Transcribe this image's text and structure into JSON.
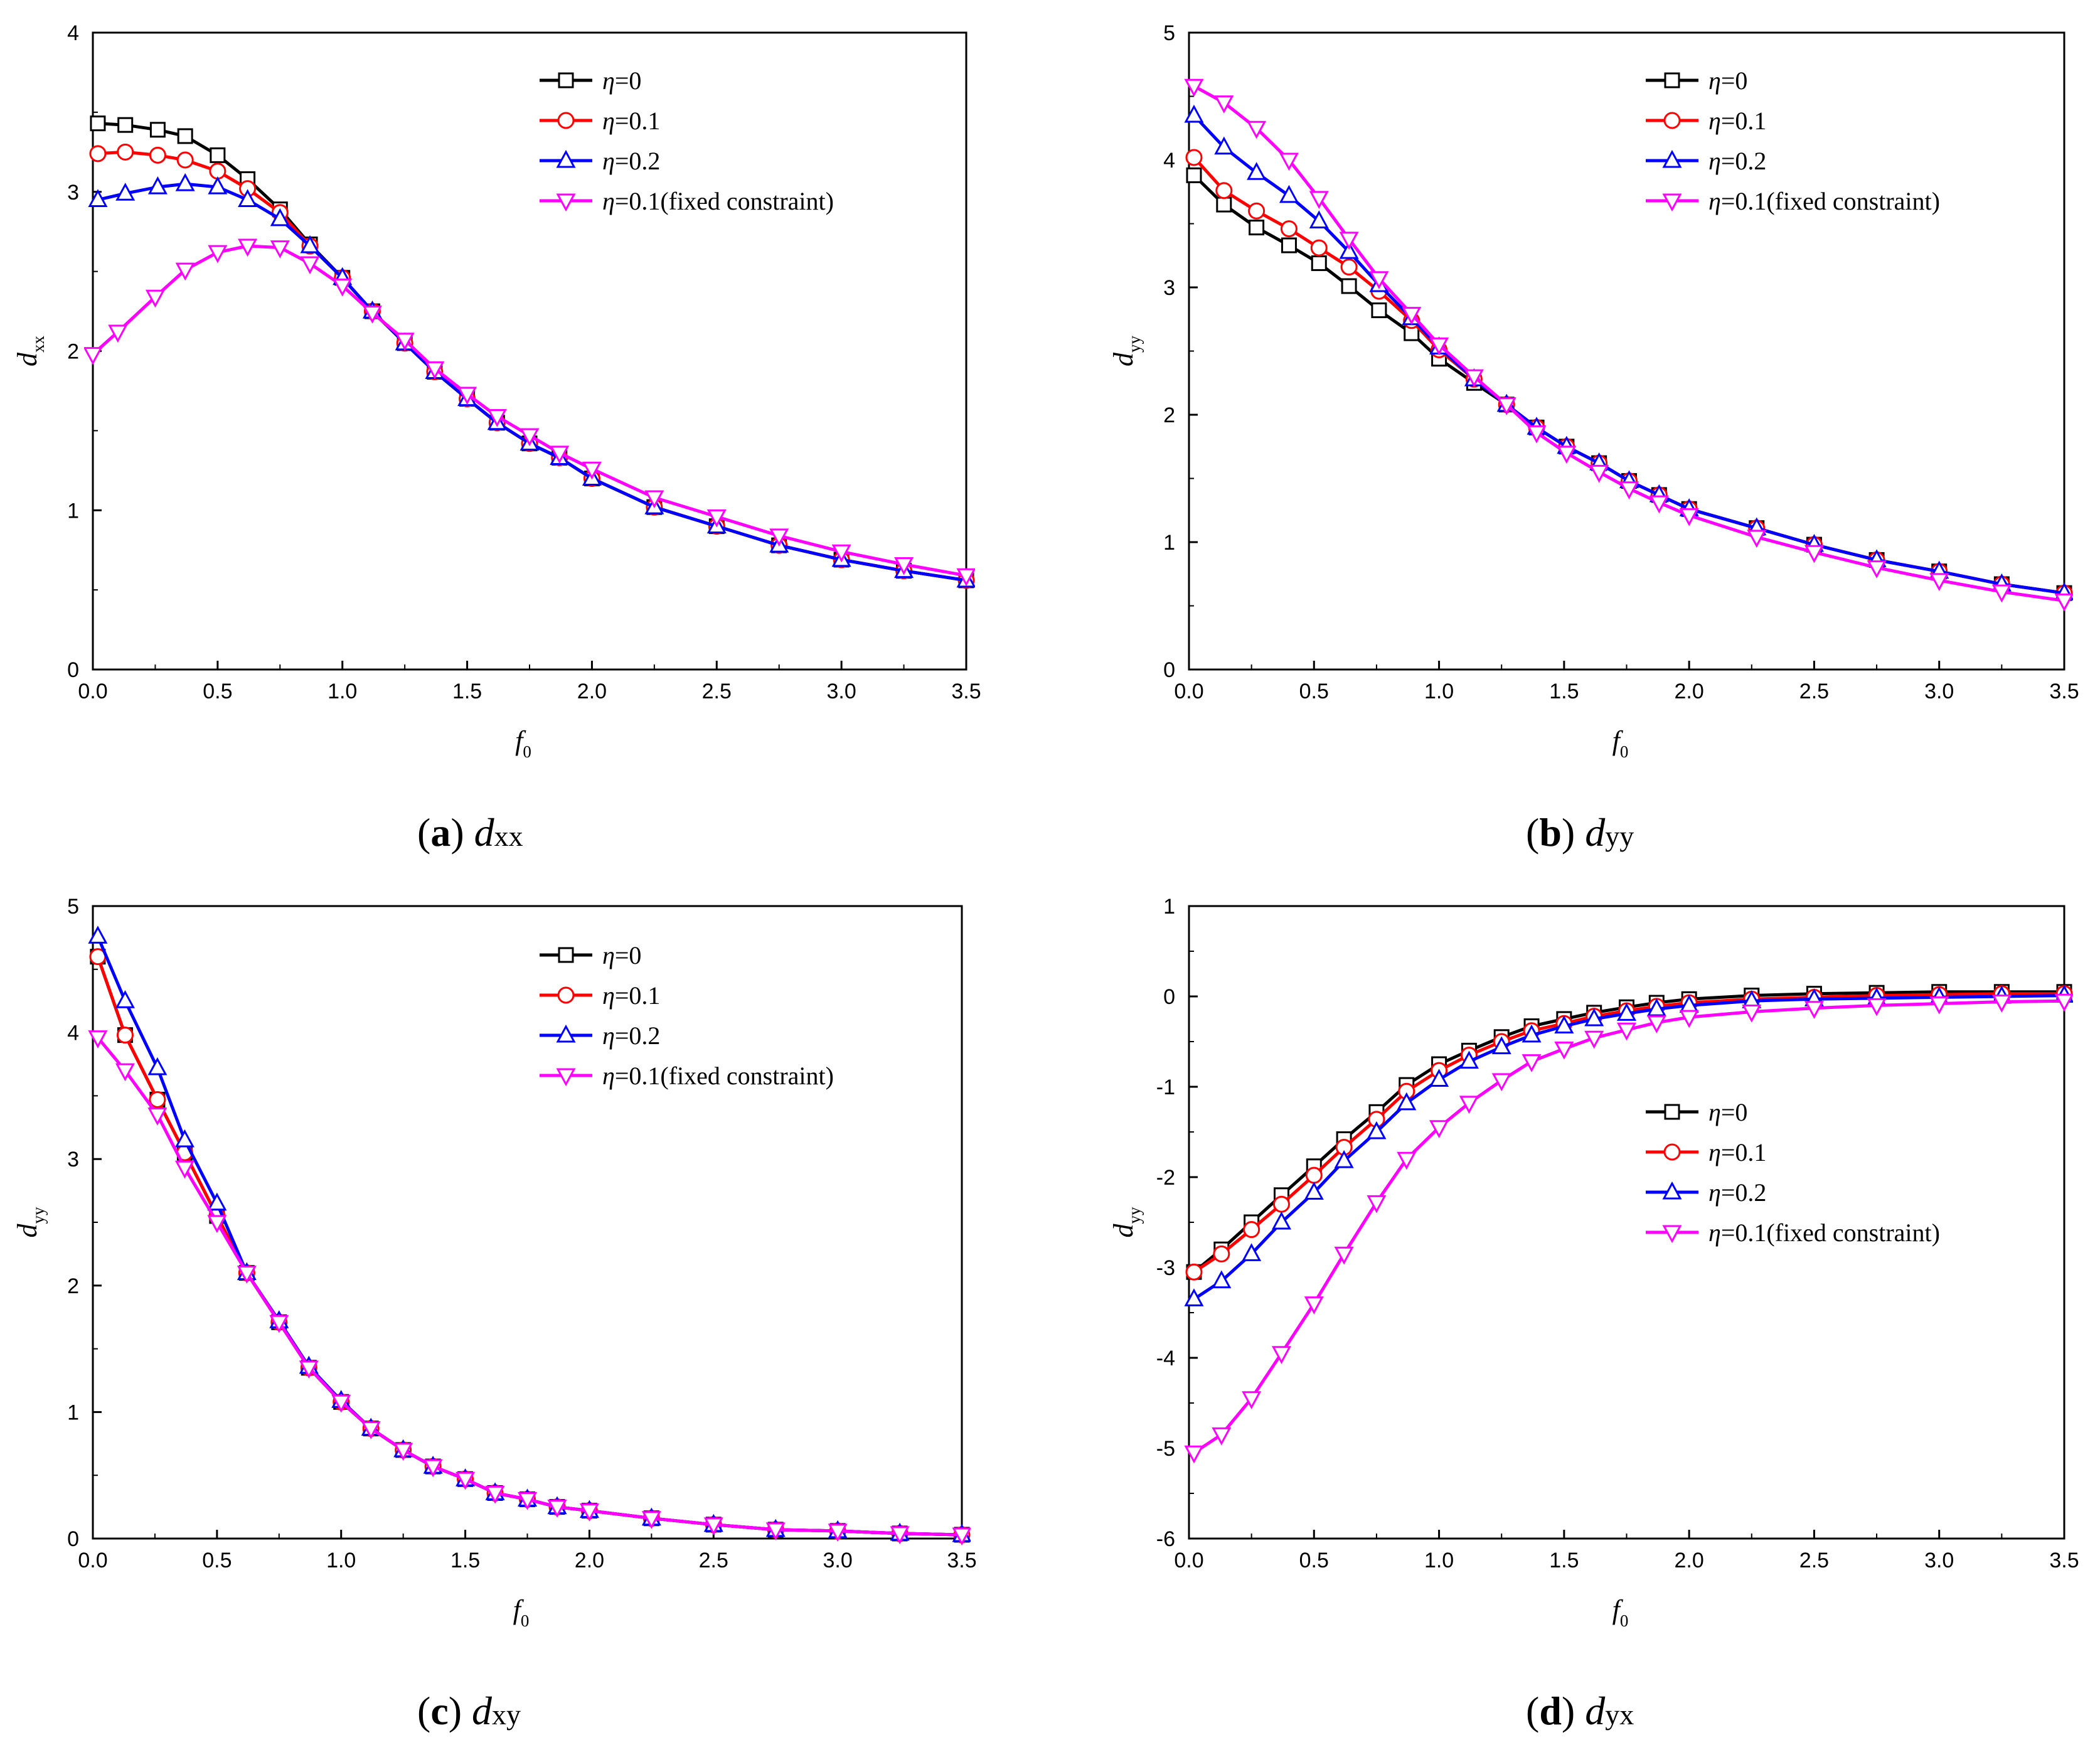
{
  "colors": {
    "eta0": "#000000",
    "eta01": "#ff0000",
    "eta02": "#0000ff",
    "fixed": "#ff00ff"
  },
  "chart_data": [
    {
      "type": "line",
      "panel_letter": "a",
      "caption_symbol": "d",
      "caption_sub": "xx",
      "ylabel_main": "d",
      "ylabel_sub": "xx",
      "xlabel_main": "f",
      "xlabel_sub": "0",
      "xlim": [
        0,
        3.5
      ],
      "ylim": [
        0,
        4
      ],
      "xticks": [
        "0.0",
        "0.5",
        "1.0",
        "1.5",
        "2.0",
        "2.5",
        "3.0",
        "3.5"
      ],
      "yticks": [
        "0",
        "1",
        "2",
        "3",
        "4"
      ],
      "legend_position": "top-right",
      "series": [
        {
          "name": "η=0",
          "eta": "0",
          "suffix": "",
          "color": "#000000",
          "marker": "square",
          "x": [
            0.02,
            0.13,
            0.26,
            0.37,
            0.5,
            0.62,
            0.75,
            0.87,
            1.0,
            1.12,
            1.25,
            1.37,
            1.5,
            1.62,
            1.75,
            1.87,
            2.0,
            2.25,
            2.5,
            2.75,
            3.0,
            3.25,
            3.5
          ],
          "y": [
            3.43,
            3.42,
            3.39,
            3.35,
            3.23,
            3.08,
            2.89,
            2.67,
            2.46,
            2.25,
            2.05,
            1.87,
            1.7,
            1.55,
            1.42,
            1.33,
            1.2,
            1.02,
            0.9,
            0.78,
            0.69,
            0.62,
            0.56
          ]
        },
        {
          "name": "η=0.1",
          "eta": "0.1",
          "suffix": "",
          "color": "#ff0000",
          "marker": "circle",
          "x": [
            0.02,
            0.13,
            0.26,
            0.37,
            0.5,
            0.62,
            0.75,
            0.87,
            1.0,
            1.12,
            1.25,
            1.37,
            1.5,
            1.62,
            1.75,
            1.87,
            2.0,
            2.25,
            2.5,
            2.75,
            3.0,
            3.25,
            3.5
          ],
          "y": [
            3.24,
            3.25,
            3.23,
            3.2,
            3.13,
            3.02,
            2.87,
            2.66,
            2.46,
            2.25,
            2.05,
            1.87,
            1.7,
            1.55,
            1.42,
            1.33,
            1.2,
            1.02,
            0.9,
            0.78,
            0.69,
            0.62,
            0.56
          ]
        },
        {
          "name": "η=0.2",
          "eta": "0.2",
          "suffix": "",
          "color": "#0000ff",
          "marker": "triangle-up",
          "x": [
            0.02,
            0.13,
            0.26,
            0.37,
            0.5,
            0.62,
            0.75,
            0.87,
            1.0,
            1.12,
            1.25,
            1.37,
            1.5,
            1.62,
            1.75,
            1.87,
            2.0,
            2.25,
            2.5,
            2.75,
            3.0,
            3.25,
            3.5
          ],
          "y": [
            2.95,
            2.99,
            3.03,
            3.05,
            3.03,
            2.95,
            2.83,
            2.66,
            2.46,
            2.25,
            2.05,
            1.87,
            1.7,
            1.55,
            1.42,
            1.33,
            1.2,
            1.02,
            0.9,
            0.78,
            0.69,
            0.62,
            0.56
          ]
        },
        {
          "name": "η=0.1(fixed constraint)",
          "eta": "0.1",
          "suffix": "(fixed constraint)",
          "color": "#ff00ff",
          "marker": "triangle-down",
          "x": [
            0.0,
            0.1,
            0.25,
            0.37,
            0.5,
            0.62,
            0.75,
            0.87,
            1.0,
            1.12,
            1.25,
            1.37,
            1.5,
            1.62,
            1.75,
            1.87,
            2.0,
            2.25,
            2.5,
            2.75,
            3.0,
            3.25,
            3.5
          ],
          "y": [
            1.98,
            2.12,
            2.34,
            2.51,
            2.62,
            2.66,
            2.65,
            2.55,
            2.41,
            2.24,
            2.07,
            1.89,
            1.73,
            1.59,
            1.47,
            1.36,
            1.26,
            1.08,
            0.96,
            0.84,
            0.74,
            0.66,
            0.59
          ]
        }
      ]
    },
    {
      "type": "line",
      "panel_letter": "b",
      "caption_symbol": "d",
      "caption_sub": "yy",
      "ylabel_main": "d",
      "ylabel_sub": "yy",
      "xlabel_main": "f",
      "xlabel_sub": "0",
      "xlim": [
        0,
        3.5
      ],
      "ylim": [
        0,
        5
      ],
      "xticks": [
        "0.0",
        "0.5",
        "1.0",
        "1.5",
        "2.0",
        "2.5",
        "3.0",
        "3.5"
      ],
      "yticks": [
        "0",
        "1",
        "2",
        "3",
        "4",
        "5"
      ],
      "legend_position": "top-right",
      "series": [
        {
          "name": "η=0",
          "eta": "0",
          "suffix": "",
          "color": "#000000",
          "marker": "square",
          "x": [
            0.02,
            0.14,
            0.27,
            0.4,
            0.52,
            0.64,
            0.76,
            0.89,
            1.0,
            1.14,
            1.27,
            1.39,
            1.51,
            1.64,
            1.76,
            1.88,
            2.0,
            2.27,
            2.5,
            2.75,
            3.0,
            3.25,
            3.5
          ],
          "y": [
            3.88,
            3.65,
            3.47,
            3.33,
            3.19,
            3.01,
            2.82,
            2.64,
            2.44,
            2.25,
            2.08,
            1.9,
            1.75,
            1.62,
            1.48,
            1.37,
            1.26,
            1.11,
            0.98,
            0.86,
            0.77,
            0.67,
            0.6
          ]
        },
        {
          "name": "η=0.1",
          "eta": "0.1",
          "suffix": "",
          "color": "#ff0000",
          "marker": "circle",
          "x": [
            0.02,
            0.14,
            0.27,
            0.4,
            0.52,
            0.64,
            0.76,
            0.89,
            1.0,
            1.14,
            1.27,
            1.39,
            1.51,
            1.64,
            1.76,
            1.88,
            2.0,
            2.27,
            2.5,
            2.75,
            3.0,
            3.25,
            3.5
          ],
          "y": [
            4.02,
            3.76,
            3.6,
            3.46,
            3.31,
            3.16,
            2.97,
            2.74,
            2.51,
            2.28,
            2.08,
            1.9,
            1.75,
            1.62,
            1.48,
            1.37,
            1.26,
            1.11,
            0.98,
            0.86,
            0.77,
            0.67,
            0.6
          ]
        },
        {
          "name": "η=0.2",
          "eta": "0.2",
          "suffix": "",
          "color": "#0000ff",
          "marker": "triangle-up",
          "x": [
            0.02,
            0.14,
            0.27,
            0.4,
            0.52,
            0.64,
            0.76,
            0.89,
            1.0,
            1.14,
            1.27,
            1.39,
            1.51,
            1.64,
            1.76,
            1.88,
            2.0,
            2.27,
            2.5,
            2.75,
            3.0,
            3.25,
            3.5
          ],
          "y": [
            4.35,
            4.1,
            3.9,
            3.72,
            3.52,
            3.28,
            3.02,
            2.76,
            2.53,
            2.28,
            2.08,
            1.9,
            1.75,
            1.62,
            1.48,
            1.37,
            1.26,
            1.11,
            0.98,
            0.86,
            0.77,
            0.67,
            0.6
          ]
        },
        {
          "name": "η=0.1(fixed constraint)",
          "eta": "0.1",
          "suffix": "(fixed constraint)",
          "color": "#ff00ff",
          "marker": "triangle-down",
          "x": [
            0.02,
            0.14,
            0.27,
            0.4,
            0.52,
            0.64,
            0.76,
            0.89,
            1.0,
            1.14,
            1.27,
            1.39,
            1.51,
            1.64,
            1.76,
            1.88,
            2.0,
            2.27,
            2.5,
            2.75,
            3.0,
            3.25,
            3.5
          ],
          "y": [
            4.58,
            4.45,
            4.25,
            4.0,
            3.7,
            3.38,
            3.07,
            2.79,
            2.55,
            2.3,
            2.08,
            1.86,
            1.7,
            1.55,
            1.42,
            1.31,
            1.21,
            1.04,
            0.92,
            0.8,
            0.7,
            0.61,
            0.54
          ]
        }
      ]
    },
    {
      "type": "line",
      "panel_letter": "c",
      "caption_symbol": "d",
      "caption_sub": "xy",
      "ylabel_main": "d",
      "ylabel_sub": "yy",
      "xlabel_main": "f",
      "xlabel_sub": "0",
      "xlim": [
        0,
        3.5
      ],
      "ylim": [
        0,
        5
      ],
      "xticks": [
        "0.0",
        "0.5",
        "1.0",
        "1.5",
        "2.0",
        "2.5",
        "3.0",
        "3.5"
      ],
      "yticks": [
        "0",
        "1",
        "2",
        "3",
        "4",
        "5"
      ],
      "legend_position": "top-right",
      "series": [
        {
          "name": "η=0",
          "eta": "0",
          "suffix": "",
          "color": "#000000",
          "marker": "square",
          "x": [
            0.02,
            0.13,
            0.26,
            0.37,
            0.5,
            0.62,
            0.75,
            0.87,
            1.0,
            1.12,
            1.25,
            1.37,
            1.5,
            1.62,
            1.75,
            1.87,
            2.0,
            2.25,
            2.5,
            2.75,
            3.0,
            3.25,
            3.5
          ],
          "y": [
            4.6,
            3.98,
            3.47,
            3.05,
            2.55,
            2.1,
            1.71,
            1.35,
            1.08,
            0.87,
            0.7,
            0.57,
            0.47,
            0.36,
            0.31,
            0.25,
            0.22,
            0.16,
            0.11,
            0.07,
            0.06,
            0.04,
            0.03
          ]
        },
        {
          "name": "η=0.1",
          "eta": "0.1",
          "suffix": "",
          "color": "#ff0000",
          "marker": "circle",
          "x": [
            0.02,
            0.13,
            0.26,
            0.37,
            0.5,
            0.62,
            0.75,
            0.87,
            1.0,
            1.12,
            1.25,
            1.37,
            1.5,
            1.62,
            1.75,
            1.87,
            2.0,
            2.25,
            2.5,
            2.75,
            3.0,
            3.25,
            3.5
          ],
          "y": [
            4.6,
            3.98,
            3.47,
            3.05,
            2.55,
            2.1,
            1.71,
            1.35,
            1.08,
            0.87,
            0.7,
            0.57,
            0.47,
            0.36,
            0.31,
            0.25,
            0.22,
            0.16,
            0.11,
            0.07,
            0.06,
            0.04,
            0.03
          ]
        },
        {
          "name": "η=0.2",
          "eta": "0.2",
          "suffix": "",
          "color": "#0000ff",
          "marker": "triangle-up",
          "x": [
            0.02,
            0.13,
            0.26,
            0.37,
            0.5,
            0.62,
            0.75,
            0.87,
            1.0,
            1.12,
            1.25,
            1.37,
            1.5,
            1.62,
            1.75,
            1.87,
            2.0,
            2.25,
            2.5,
            2.75,
            3.0,
            3.25,
            3.5
          ],
          "y": [
            4.76,
            4.25,
            3.72,
            3.15,
            2.65,
            2.1,
            1.72,
            1.36,
            1.09,
            0.87,
            0.7,
            0.57,
            0.47,
            0.36,
            0.31,
            0.25,
            0.22,
            0.16,
            0.11,
            0.07,
            0.06,
            0.04,
            0.03
          ]
        },
        {
          "name": "η=0.1(fixed constraint)",
          "eta": "0.1",
          "suffix": "(fixed constraint)",
          "color": "#ff00ff",
          "marker": "triangle-down",
          "x": [
            0.02,
            0.13,
            0.26,
            0.37,
            0.5,
            0.62,
            0.75,
            0.87,
            1.0,
            1.12,
            1.25,
            1.37,
            1.5,
            1.62,
            1.75,
            1.87,
            2.0,
            2.25,
            2.5,
            2.75,
            3.0,
            3.25,
            3.5
          ],
          "y": [
            3.96,
            3.7,
            3.35,
            2.93,
            2.5,
            2.1,
            1.71,
            1.35,
            1.08,
            0.87,
            0.7,
            0.57,
            0.47,
            0.36,
            0.31,
            0.25,
            0.22,
            0.16,
            0.11,
            0.07,
            0.06,
            0.04,
            0.03
          ]
        }
      ]
    },
    {
      "type": "line",
      "panel_letter": "d",
      "caption_symbol": "d",
      "caption_sub": "yx",
      "ylabel_main": "d",
      "ylabel_sub": "yy",
      "xlabel_main": "f",
      "xlabel_sub": "0",
      "xlim": [
        0,
        3.5
      ],
      "ylim": [
        -6,
        1
      ],
      "xticks": [
        "0.0",
        "0.5",
        "1.0",
        "1.5",
        "2.0",
        "2.5",
        "3.0",
        "3.5"
      ],
      "yticks": [
        "-6",
        "-5",
        "-4",
        "-3",
        "-2",
        "-1",
        "0",
        "1"
      ],
      "legend_position": "center-right",
      "series": [
        {
          "name": "η=0",
          "eta": "0",
          "suffix": "",
          "color": "#000000",
          "marker": "square",
          "x": [
            0.02,
            0.13,
            0.25,
            0.37,
            0.5,
            0.62,
            0.75,
            0.87,
            1.0,
            1.12,
            1.25,
            1.37,
            1.5,
            1.62,
            1.75,
            1.87,
            2.0,
            2.25,
            2.5,
            2.75,
            3.0,
            3.25,
            3.5
          ],
          "y": [
            -3.05,
            -2.8,
            -2.5,
            -2.2,
            -1.88,
            -1.58,
            -1.28,
            -0.98,
            -0.75,
            -0.6,
            -0.45,
            -0.33,
            -0.25,
            -0.18,
            -0.12,
            -0.07,
            -0.03,
            0.01,
            0.03,
            0.04,
            0.05,
            0.05,
            0.05
          ]
        },
        {
          "name": "η=0.1",
          "eta": "0.1",
          "suffix": "",
          "color": "#ff0000",
          "marker": "circle",
          "x": [
            0.02,
            0.13,
            0.25,
            0.37,
            0.5,
            0.62,
            0.75,
            0.87,
            1.0,
            1.12,
            1.25,
            1.37,
            1.5,
            1.62,
            1.75,
            1.87,
            2.0,
            2.25,
            2.5,
            2.75,
            3.0,
            3.25,
            3.5
          ],
          "y": [
            -3.05,
            -2.85,
            -2.58,
            -2.3,
            -1.98,
            -1.67,
            -1.36,
            -1.05,
            -0.82,
            -0.65,
            -0.5,
            -0.38,
            -0.3,
            -0.22,
            -0.16,
            -0.11,
            -0.07,
            -0.03,
            -0.01,
            0.01,
            0.02,
            0.03,
            0.03
          ]
        },
        {
          "name": "η=0.2",
          "eta": "0.2",
          "suffix": "",
          "color": "#0000ff",
          "marker": "triangle-up",
          "x": [
            0.02,
            0.13,
            0.25,
            0.37,
            0.5,
            0.62,
            0.75,
            0.87,
            1.0,
            1.12,
            1.25,
            1.37,
            1.5,
            1.62,
            1.75,
            1.87,
            2.0,
            2.25,
            2.5,
            2.75,
            3.0,
            3.25,
            3.5
          ],
          "y": [
            -3.35,
            -3.15,
            -2.85,
            -2.5,
            -2.17,
            -1.82,
            -1.5,
            -1.18,
            -0.92,
            -0.72,
            -0.56,
            -0.43,
            -0.33,
            -0.25,
            -0.19,
            -0.14,
            -0.1,
            -0.05,
            -0.03,
            -0.02,
            -0.01,
            0.0,
            0.01
          ]
        },
        {
          "name": "η=0.1(fixed constraint)",
          "eta": "0.1",
          "suffix": "(fixed constraint)",
          "color": "#ff00ff",
          "marker": "triangle-down",
          "x": [
            0.02,
            0.13,
            0.25,
            0.37,
            0.5,
            0.62,
            0.75,
            0.87,
            1.0,
            1.12,
            1.25,
            1.37,
            1.5,
            1.62,
            1.75,
            1.87,
            2.0,
            2.25,
            2.5,
            2.75,
            3.0,
            3.25,
            3.5
          ],
          "y": [
            -5.05,
            -4.85,
            -4.45,
            -3.95,
            -3.4,
            -2.85,
            -2.28,
            -1.8,
            -1.45,
            -1.18,
            -0.93,
            -0.72,
            -0.58,
            -0.46,
            -0.37,
            -0.29,
            -0.23,
            -0.17,
            -0.13,
            -0.1,
            -0.08,
            -0.06,
            -0.05
          ]
        }
      ]
    }
  ]
}
